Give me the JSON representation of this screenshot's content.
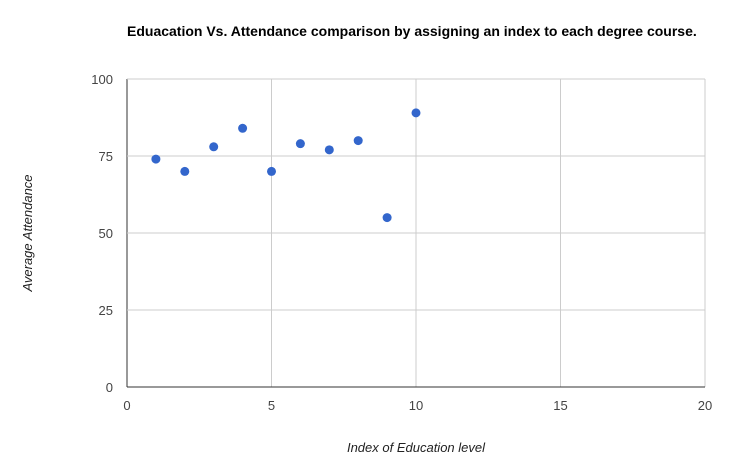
{
  "chart_data": {
    "type": "scatter",
    "title": "Eduacation Vs. Attendance comparison by assigning an index to each degree course.",
    "xlabel": "Index of Education level",
    "ylabel": "Average Attendance",
    "xlim": [
      0,
      20
    ],
    "ylim": [
      0,
      100
    ],
    "x_ticks": [
      "0",
      "5",
      "10",
      "15",
      "20"
    ],
    "y_ticks": [
      "0",
      "25",
      "50",
      "75",
      "100"
    ],
    "grid": true,
    "legend": "none",
    "point_color": "#3366cc",
    "points": [
      {
        "x": 1,
        "y": 74
      },
      {
        "x": 2,
        "y": 70
      },
      {
        "x": 3,
        "y": 78
      },
      {
        "x": 4,
        "y": 84
      },
      {
        "x": 5,
        "y": 70
      },
      {
        "x": 6,
        "y": 79
      },
      {
        "x": 7,
        "y": 77
      },
      {
        "x": 8,
        "y": 80
      },
      {
        "x": 9,
        "y": 55
      },
      {
        "x": 10,
        "y": 89
      }
    ]
  }
}
